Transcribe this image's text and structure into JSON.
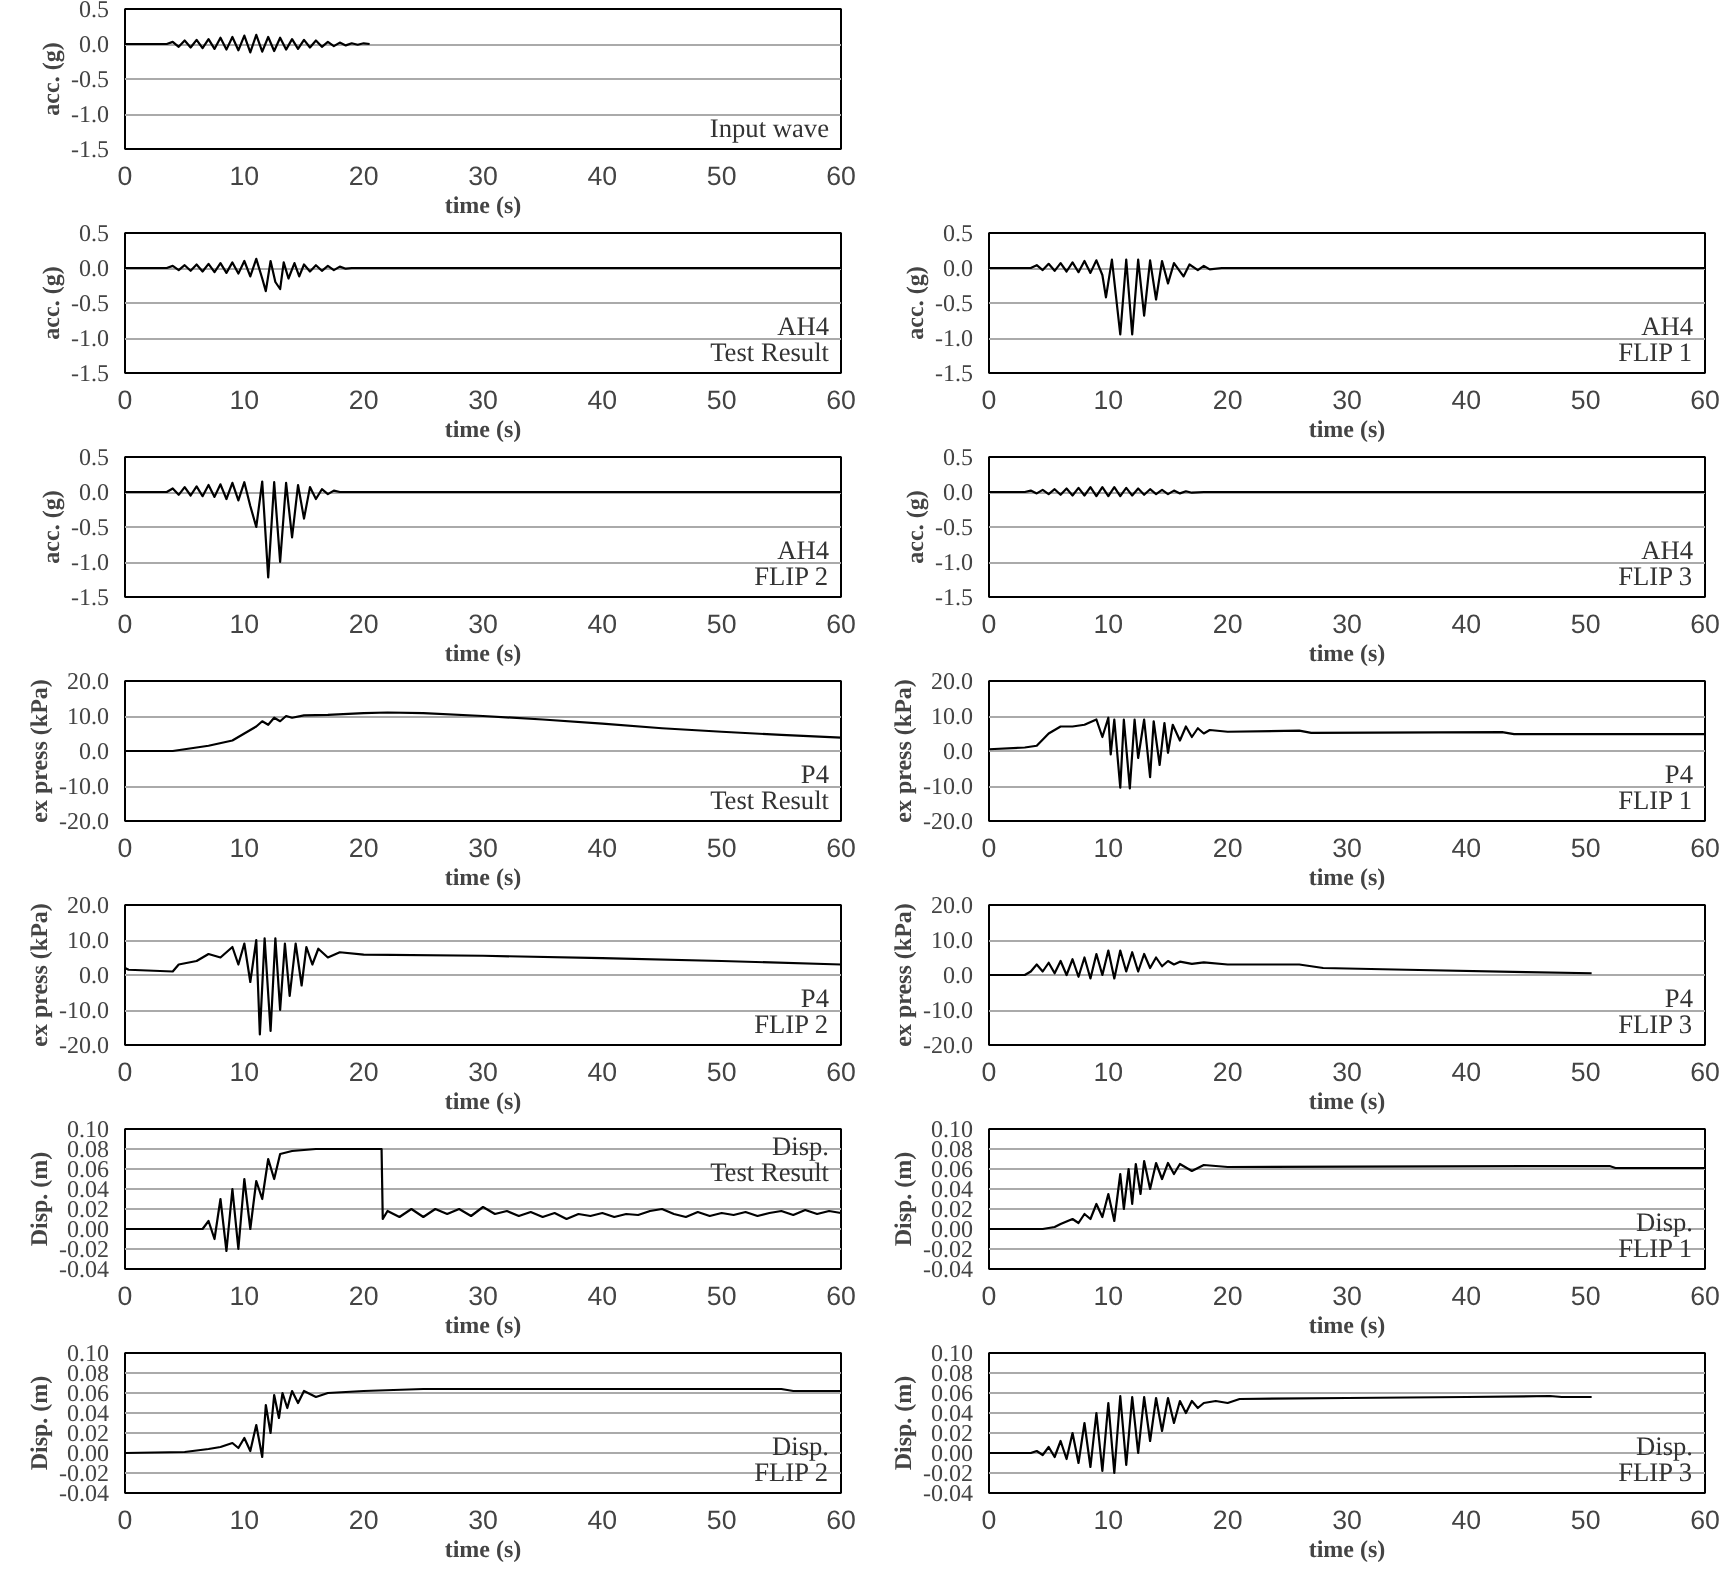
{
  "chart_data": [
    {
      "type": "line",
      "xlabel": "time (s)",
      "ylabel": "acc. (g)",
      "annotations": [
        "Input wave"
      ],
      "xlim": [
        0,
        60
      ],
      "xticks": [
        0,
        10,
        20,
        30,
        40,
        50,
        60
      ],
      "ylim": [
        -1.5,
        0.5
      ],
      "yticks": [
        {
          "value": 0.5,
          "label": "0.5"
        },
        {
          "value": 0,
          "label": "0.0"
        },
        {
          "value": -0.5,
          "label": "-0.5"
        },
        {
          "value": -1,
          "label": "-1.0"
        },
        {
          "value": -1.5,
          "label": "-1.5"
        }
      ],
      "grid": "y",
      "x": [
        0,
        3.5,
        4,
        4.5,
        5,
        5.5,
        6,
        6.5,
        7,
        7.5,
        8,
        8.5,
        9,
        9.5,
        10,
        10.5,
        11,
        11.5,
        12,
        12.5,
        13,
        13.5,
        14,
        14.5,
        15,
        15.5,
        16,
        16.5,
        17,
        17.5,
        18,
        18.5,
        19,
        19.5,
        20,
        20.5
      ],
      "series": [
        {
          "color": "#000000",
          "values": [
            0,
            0,
            0.03,
            -0.04,
            0.05,
            -0.05,
            0.06,
            -0.06,
            0.07,
            -0.07,
            0.09,
            -0.08,
            0.1,
            -0.09,
            0.12,
            -0.12,
            0.13,
            -0.11,
            0.1,
            -0.1,
            0.09,
            -0.08,
            0.07,
            -0.07,
            0.06,
            -0.05,
            0.05,
            -0.04,
            0.03,
            -0.03,
            0.02,
            -0.02,
            0.01,
            -0.01,
            0.01,
            0
          ]
        }
      ]
    },
    {
      "type": "line",
      "xlabel": "time (s)",
      "ylabel": "acc. (g)",
      "annotations": [
        "AH4",
        "Test Result"
      ],
      "xlim": [
        0,
        60
      ],
      "xticks": [
        0,
        10,
        20,
        30,
        40,
        50,
        60
      ],
      "ylim": [
        -1.5,
        0.5
      ],
      "yticks": [
        {
          "value": 0.5,
          "label": "0.5"
        },
        {
          "value": 0,
          "label": "0.0"
        },
        {
          "value": -0.5,
          "label": "-0.5"
        },
        {
          "value": -1,
          "label": "-1.0"
        },
        {
          "value": -1.5,
          "label": "-1.5"
        }
      ],
      "grid": "y",
      "x": [
        0,
        3.5,
        4,
        4.5,
        5,
        5.5,
        6,
        6.5,
        7,
        7.5,
        8,
        8.5,
        9,
        9.5,
        10,
        10.5,
        11,
        11.5,
        11.8,
        12.2,
        12.6,
        13,
        13.3,
        13.7,
        14.2,
        14.6,
        15,
        15.5,
        16,
        16.5,
        17,
        17.5,
        18,
        18.5,
        19,
        60
      ],
      "series": [
        {
          "color": "#000000",
          "values": [
            0,
            0,
            0.03,
            -0.03,
            0.04,
            -0.04,
            0.05,
            -0.05,
            0.06,
            -0.06,
            0.07,
            -0.07,
            0.08,
            -0.08,
            0.1,
            -0.12,
            0.13,
            -0.15,
            -0.33,
            0.1,
            -0.2,
            -0.3,
            0.08,
            -0.15,
            0.07,
            -0.12,
            0.05,
            -0.05,
            0.04,
            -0.04,
            0.03,
            -0.03,
            0.02,
            -0.01,
            0,
            0
          ]
        }
      ]
    },
    {
      "type": "line",
      "xlabel": "time (s)",
      "ylabel": "acc. (g)",
      "annotations": [
        "AH4",
        "FLIP 1"
      ],
      "xlim": [
        0,
        60
      ],
      "xticks": [
        0,
        10,
        20,
        30,
        40,
        50,
        60
      ],
      "ylim": [
        -1.5,
        0.5
      ],
      "yticks": [
        {
          "value": 0.5,
          "label": "0.5"
        },
        {
          "value": 0,
          "label": "0.0"
        },
        {
          "value": -0.5,
          "label": "-0.5"
        },
        {
          "value": -1,
          "label": "-1.0"
        },
        {
          "value": -1.5,
          "label": "-1.5"
        }
      ],
      "grid": "y",
      "x": [
        0,
        3.5,
        4,
        4.5,
        5,
        5.5,
        6,
        6.5,
        7,
        7.5,
        8,
        8.5,
        9,
        9.5,
        9.8,
        10.3,
        11,
        11.5,
        12,
        12.5,
        13,
        13.5,
        14,
        14.5,
        15,
        15.5,
        16.3,
        16.8,
        17.5,
        18,
        18.5,
        19.5,
        60
      ],
      "series": [
        {
          "color": "#000000",
          "values": [
            0,
            0,
            0.04,
            -0.03,
            0.06,
            -0.04,
            0.07,
            -0.05,
            0.08,
            -0.06,
            0.1,
            -0.07,
            0.11,
            -0.1,
            -0.42,
            0.12,
            -0.95,
            0.12,
            -0.95,
            0.12,
            -0.68,
            0.11,
            -0.45,
            0.1,
            -0.22,
            0.07,
            -0.12,
            0.05,
            -0.03,
            0.03,
            -0.02,
            0,
            0
          ]
        }
      ]
    },
    {
      "type": "line",
      "xlabel": "time (s)",
      "ylabel": "acc. (g)",
      "annotations": [
        "AH4",
        "FLIP 2"
      ],
      "xlim": [
        0,
        60
      ],
      "xticks": [
        0,
        10,
        20,
        30,
        40,
        50,
        60
      ],
      "ylim": [
        -1.5,
        0.5
      ],
      "yticks": [
        {
          "value": 0.5,
          "label": "0.5"
        },
        {
          "value": 0,
          "label": "0.0"
        },
        {
          "value": -0.5,
          "label": "-0.5"
        },
        {
          "value": -1,
          "label": "-1.0"
        },
        {
          "value": -1.5,
          "label": "-1.5"
        }
      ],
      "grid": "y",
      "x": [
        0,
        3.5,
        4,
        4.5,
        5,
        5.5,
        6,
        6.5,
        7,
        7.5,
        8,
        8.5,
        9,
        9.5,
        10,
        10.5,
        11,
        11.5,
        12,
        12.5,
        13,
        13.5,
        14,
        14.5,
        15,
        15.5,
        16,
        16.5,
        17,
        17.5,
        18,
        60
      ],
      "series": [
        {
          "color": "#000000",
          "values": [
            0,
            0,
            0.05,
            -0.04,
            0.07,
            -0.05,
            0.08,
            -0.06,
            0.1,
            -0.07,
            0.11,
            -0.1,
            0.13,
            -0.12,
            0.14,
            -0.2,
            -0.5,
            0.15,
            -1.22,
            0.14,
            -1.0,
            0.13,
            -0.65,
            0.1,
            -0.38,
            0.07,
            -0.1,
            0.04,
            -0.03,
            0.02,
            0,
            0
          ]
        }
      ]
    },
    {
      "type": "line",
      "xlabel": "time (s)",
      "ylabel": "acc. (g)",
      "annotations": [
        "AH4",
        "FLIP 3"
      ],
      "xlim": [
        0,
        60
      ],
      "xticks": [
        0,
        10,
        20,
        30,
        40,
        50,
        60
      ],
      "ylim": [
        -1.5,
        0.5
      ],
      "yticks": [
        {
          "value": 0.5,
          "label": "0.5"
        },
        {
          "value": 0,
          "label": "0.0"
        },
        {
          "value": -0.5,
          "label": "-0.5"
        },
        {
          "value": -1,
          "label": "-1.0"
        },
        {
          "value": -1.5,
          "label": "-1.5"
        }
      ],
      "grid": "y",
      "x": [
        0,
        3,
        3.5,
        4,
        4.5,
        5,
        5.5,
        6,
        6.5,
        7,
        7.5,
        8,
        8.5,
        9,
        9.5,
        10,
        10.5,
        11,
        11.5,
        12,
        12.5,
        13,
        13.5,
        14,
        14.5,
        15,
        15.5,
        16,
        16.5,
        17,
        18,
        60
      ],
      "series": [
        {
          "color": "#000000",
          "values": [
            0,
            0,
            0.02,
            -0.02,
            0.03,
            -0.03,
            0.04,
            -0.04,
            0.05,
            -0.05,
            0.06,
            -0.05,
            0.07,
            -0.06,
            0.07,
            -0.06,
            0.07,
            -0.06,
            0.06,
            -0.05,
            0.05,
            -0.04,
            0.04,
            -0.03,
            0.03,
            -0.03,
            0.02,
            -0.02,
            0.01,
            -0.01,
            0,
            0
          ]
        }
      ]
    },
    {
      "type": "line",
      "xlabel": "time (s)",
      "ylabel": "ex press (kPa)",
      "annotations": [
        "P4",
        "Test Result"
      ],
      "xlim": [
        0,
        60
      ],
      "xticks": [
        0,
        10,
        20,
        30,
        40,
        50,
        60
      ],
      "ylim": [
        -20,
        20
      ],
      "yticks": [
        {
          "value": 20,
          "label": "20.0"
        },
        {
          "value": 10,
          "label": "10.0"
        },
        {
          "value": 0,
          "label": "0.0"
        },
        {
          "value": -10,
          "label": "-10.0"
        },
        {
          "value": -20,
          "label": "-20.0"
        }
      ],
      "grid": "y",
      "x": [
        0,
        4,
        5,
        7,
        9,
        10,
        11,
        11.5,
        12,
        12.5,
        13,
        13.5,
        14,
        15,
        17,
        20,
        22,
        25,
        30,
        35,
        40,
        45,
        50,
        55,
        60
      ],
      "series": [
        {
          "color": "#000000",
          "values": [
            0,
            0,
            0.5,
            1.5,
            3,
            5,
            7,
            8.5,
            7.5,
            9.5,
            8.5,
            10,
            9.5,
            10.2,
            10.3,
            10.8,
            11,
            10.8,
            10,
            9,
            7.8,
            6.5,
            5.5,
            4.6,
            3.8
          ]
        }
      ]
    },
    {
      "type": "line",
      "xlabel": "time (s)",
      "ylabel": "ex press (kPa)",
      "annotations": [
        "P4",
        "FLIP 1"
      ],
      "xlim": [
        0,
        60
      ],
      "xticks": [
        0,
        10,
        20,
        30,
        40,
        50,
        60
      ],
      "ylim": [
        -20,
        20
      ],
      "yticks": [
        {
          "value": 20,
          "label": "20.0"
        },
        {
          "value": 10,
          "label": "10.0"
        },
        {
          "value": 0,
          "label": "0.0"
        },
        {
          "value": -10,
          "label": "-10.0"
        },
        {
          "value": -20,
          "label": "-20.0"
        }
      ],
      "grid": "y",
      "x": [
        0,
        3,
        4,
        5,
        6,
        7,
        8,
        9,
        9.5,
        10,
        10.2,
        10.5,
        11,
        11.3,
        11.8,
        12.2,
        12.5,
        13,
        13.5,
        13.8,
        14.3,
        14.7,
        15,
        15.4,
        16,
        16.5,
        17,
        17.5,
        18,
        18.5,
        20,
        26,
        27,
        43,
        44,
        60
      ],
      "series": [
        {
          "color": "#000000",
          "values": [
            0.5,
            1,
            1.5,
            5,
            7,
            7,
            7.5,
            9,
            4,
            9.5,
            -1,
            9,
            -10.5,
            9,
            -10.7,
            9,
            -2,
            9,
            -7.5,
            8.5,
            -4,
            8,
            -0.5,
            7.5,
            3,
            7,
            4,
            6.5,
            5,
            6,
            5.5,
            5.8,
            5.2,
            5.4,
            4.8,
            4.8
          ]
        }
      ]
    },
    {
      "type": "line",
      "xlabel": "time (s)",
      "ylabel": "ex press (kPa)",
      "annotations": [
        "P4",
        "FLIP 2"
      ],
      "xlim": [
        0,
        60
      ],
      "xticks": [
        0,
        10,
        20,
        30,
        40,
        50,
        60
      ],
      "ylim": [
        -20,
        20
      ],
      "yticks": [
        {
          "value": 20,
          "label": "20.0"
        },
        {
          "value": 10,
          "label": "10.0"
        },
        {
          "value": 0,
          "label": "0.0"
        },
        {
          "value": -10,
          "label": "-10.0"
        },
        {
          "value": -20,
          "label": "-20.0"
        }
      ],
      "grid": "y",
      "x": [
        0,
        0.3,
        4,
        4.5,
        6,
        7,
        8,
        9,
        9.5,
        10,
        10.5,
        11,
        11.3,
        11.7,
        12.2,
        12.6,
        13,
        13.4,
        13.8,
        14.3,
        14.8,
        15.2,
        15.7,
        16.2,
        17,
        18,
        20,
        30,
        40,
        50,
        60
      ],
      "series": [
        {
          "color": "#000000",
          "values": [
            2,
            1.5,
            1,
            3,
            4,
            6,
            5,
            8,
            3,
            9,
            -2,
            10,
            -17,
            10.5,
            -16,
            10.5,
            -10,
            9,
            -6,
            9,
            -3,
            8,
            3,
            7.5,
            5,
            6.5,
            5.8,
            5.5,
            4.8,
            4,
            3
          ]
        }
      ]
    },
    {
      "type": "line",
      "xlabel": "time (s)",
      "ylabel": "ex press (kPa)",
      "annotations": [
        "P4",
        "FLIP 3"
      ],
      "xlim": [
        0,
        60
      ],
      "xticks": [
        0,
        10,
        20,
        30,
        40,
        50,
        60
      ],
      "ylim": [
        -20,
        20
      ],
      "yticks": [
        {
          "value": 20,
          "label": "20.0"
        },
        {
          "value": 10,
          "label": "10.0"
        },
        {
          "value": 0,
          "label": "0.0"
        },
        {
          "value": -10,
          "label": "-10.0"
        },
        {
          "value": -20,
          "label": "-20.0"
        }
      ],
      "grid": "y",
      "x": [
        0,
        3,
        3.5,
        4,
        4.5,
        5,
        5.5,
        6,
        6.5,
        7,
        7.5,
        8,
        8.5,
        9,
        9.5,
        10,
        10.5,
        11,
        11.5,
        12,
        12.5,
        13,
        13.5,
        14,
        14.5,
        15,
        15.5,
        16,
        17,
        18,
        20,
        26,
        28,
        35,
        45,
        50.5
      ],
      "series": [
        {
          "color": "#000000",
          "values": [
            0,
            0,
            1,
            3,
            1,
            3.5,
            0.5,
            4,
            0,
            4.5,
            -0.5,
            5,
            -1,
            6,
            0,
            7,
            -1,
            7,
            1,
            6.5,
            1,
            6,
            2,
            5,
            2.5,
            4,
            3,
            3.8,
            3.2,
            3.6,
            3,
            3,
            2,
            1.5,
            0.8,
            0.5
          ]
        }
      ]
    },
    {
      "type": "line",
      "xlabel": "time (s)",
      "ylabel": "Disp. (m)",
      "annotations": [
        "Disp.",
        "Test Result"
      ],
      "xlim": [
        0,
        60
      ],
      "xticks": [
        0,
        10,
        20,
        30,
        40,
        50,
        60
      ],
      "ylim": [
        -0.04,
        0.1
      ],
      "yticks": [
        {
          "value": 0.1,
          "label": "0.10"
        },
        {
          "value": 0.08,
          "label": "0.08"
        },
        {
          "value": 0.06,
          "label": "0.06"
        },
        {
          "value": 0.04,
          "label": "0.04"
        },
        {
          "value": 0.02,
          "label": "0.02"
        },
        {
          "value": 0,
          "label": "0.00"
        },
        {
          "value": -0.02,
          "label": "-0.02"
        },
        {
          "value": -0.04,
          "label": "-0.04"
        }
      ],
      "grid": "y",
      "x": [
        0,
        6.5,
        7,
        7.5,
        8,
        8.5,
        9,
        9.5,
        10,
        10.5,
        11,
        11.5,
        12,
        12.5,
        13,
        14,
        16,
        21.5,
        21.6,
        22,
        23,
        24,
        25,
        26,
        27,
        28,
        29,
        30,
        31,
        32,
        33,
        34,
        35,
        36,
        37,
        38,
        39,
        40,
        41,
        42,
        43,
        44,
        45,
        46,
        47,
        48,
        49,
        50,
        51,
        52,
        53,
        54,
        55,
        56,
        57,
        58,
        59,
        60
      ],
      "series": [
        {
          "color": "#000000",
          "values": [
            0,
            0,
            0.008,
            -0.01,
            0.03,
            -0.022,
            0.04,
            -0.02,
            0.05,
            0,
            0.048,
            0.03,
            0.07,
            0.05,
            0.075,
            0.078,
            0.08,
            0.08,
            0.01,
            0.018,
            0.012,
            0.02,
            0.012,
            0.02,
            0.015,
            0.02,
            0.013,
            0.022,
            0.015,
            0.018,
            0.013,
            0.017,
            0.012,
            0.016,
            0.01,
            0.015,
            0.013,
            0.016,
            0.012,
            0.015,
            0.014,
            0.018,
            0.02,
            0.015,
            0.012,
            0.017,
            0.013,
            0.016,
            0.014,
            0.017,
            0.013,
            0.016,
            0.018,
            0.014,
            0.019,
            0.015,
            0.018,
            0.016
          ]
        }
      ]
    },
    {
      "type": "line",
      "xlabel": "time (s)",
      "ylabel": "Disp. (m)",
      "annotations": [
        "Disp.",
        "FLIP 1"
      ],
      "xlim": [
        0,
        60
      ],
      "xticks": [
        0,
        10,
        20,
        30,
        40,
        50,
        60
      ],
      "ylim": [
        -0.04,
        0.1
      ],
      "yticks": [
        {
          "value": 0.1,
          "label": "0.10"
        },
        {
          "value": 0.08,
          "label": "0.08"
        },
        {
          "value": 0.06,
          "label": "0.06"
        },
        {
          "value": 0.04,
          "label": "0.04"
        },
        {
          "value": 0.02,
          "label": "0.02"
        },
        {
          "value": 0,
          "label": "0.00"
        },
        {
          "value": -0.02,
          "label": "-0.02"
        },
        {
          "value": -0.04,
          "label": "-0.04"
        }
      ],
      "grid": "y",
      "x": [
        0,
        4.5,
        5.5,
        6,
        7,
        7.5,
        8,
        8.5,
        9,
        9.5,
        10,
        10.5,
        11,
        11.3,
        11.7,
        12,
        12.3,
        12.7,
        13,
        13.5,
        14,
        14.5,
        15,
        15.5,
        16,
        17,
        18,
        20,
        52,
        52.5,
        60
      ],
      "series": [
        {
          "color": "#000000",
          "values": [
            0,
            0,
            0.002,
            0.005,
            0.01,
            0.006,
            0.015,
            0.01,
            0.025,
            0.012,
            0.035,
            0.008,
            0.055,
            0.02,
            0.06,
            0.025,
            0.065,
            0.035,
            0.068,
            0.04,
            0.066,
            0.05,
            0.066,
            0.055,
            0.065,
            0.058,
            0.064,
            0.062,
            0.063,
            0.061,
            0.061
          ]
        }
      ]
    },
    {
      "type": "line",
      "xlabel": "time (s)",
      "ylabel": "Disp. (m)",
      "annotations": [
        "Disp.",
        "FLIP 2"
      ],
      "xlim": [
        0,
        60
      ],
      "xticks": [
        0,
        10,
        20,
        30,
        40,
        50,
        60
      ],
      "ylim": [
        -0.04,
        0.1
      ],
      "yticks": [
        {
          "value": 0.1,
          "label": "0.10"
        },
        {
          "value": 0.08,
          "label": "0.08"
        },
        {
          "value": 0.06,
          "label": "0.06"
        },
        {
          "value": 0.04,
          "label": "0.04"
        },
        {
          "value": 0.02,
          "label": "0.02"
        },
        {
          "value": 0,
          "label": "0.00"
        },
        {
          "value": -0.02,
          "label": "-0.02"
        },
        {
          "value": -0.04,
          "label": "-0.04"
        }
      ],
      "grid": "y",
      "x": [
        0,
        5,
        7,
        8,
        9,
        9.5,
        10,
        10.5,
        11,
        11.5,
        11.8,
        12.2,
        12.5,
        12.9,
        13.2,
        13.6,
        14,
        14.5,
        15,
        16,
        17,
        20,
        25,
        40,
        55,
        56,
        60
      ],
      "series": [
        {
          "color": "#000000",
          "values": [
            0,
            0.001,
            0.004,
            0.006,
            0.01,
            0.005,
            0.015,
            0.002,
            0.028,
            -0.004,
            0.048,
            0.02,
            0.058,
            0.035,
            0.06,
            0.045,
            0.062,
            0.05,
            0.062,
            0.056,
            0.06,
            0.062,
            0.064,
            0.064,
            0.064,
            0.062,
            0.062
          ]
        }
      ]
    },
    {
      "type": "line",
      "xlabel": "time (s)",
      "ylabel": "Disp. (m)",
      "annotations": [
        "Disp.",
        "FLIP 3"
      ],
      "xlim": [
        0,
        60
      ],
      "xticks": [
        0,
        10,
        20,
        30,
        40,
        50,
        60
      ],
      "ylim": [
        -0.04,
        0.1
      ],
      "yticks": [
        {
          "value": 0.1,
          "label": "0.10"
        },
        {
          "value": 0.08,
          "label": "0.08"
        },
        {
          "value": 0.06,
          "label": "0.06"
        },
        {
          "value": 0.04,
          "label": "0.04"
        },
        {
          "value": 0.02,
          "label": "0.02"
        },
        {
          "value": 0,
          "label": "0.00"
        },
        {
          "value": -0.02,
          "label": "-0.02"
        },
        {
          "value": -0.04,
          "label": "-0.04"
        }
      ],
      "grid": "y",
      "x": [
        0,
        3.5,
        4,
        4.5,
        5,
        5.5,
        6,
        6.5,
        7,
        7.5,
        8,
        8.5,
        9,
        9.5,
        10,
        10.5,
        11,
        11.5,
        12,
        12.5,
        13,
        13.5,
        14,
        14.5,
        15,
        15.5,
        16,
        16.5,
        17,
        17.5,
        18,
        19,
        20,
        21,
        30,
        40,
        47,
        48,
        50.5
      ],
      "series": [
        {
          "color": "#000000",
          "values": [
            0,
            0,
            0.002,
            -0.002,
            0.006,
            -0.004,
            0.012,
            -0.006,
            0.02,
            -0.01,
            0.03,
            -0.014,
            0.04,
            -0.018,
            0.05,
            -0.02,
            0.057,
            -0.012,
            0.056,
            0,
            0.056,
            0.012,
            0.055,
            0.022,
            0.055,
            0.03,
            0.052,
            0.04,
            0.052,
            0.045,
            0.05,
            0.052,
            0.05,
            0.054,
            0.055,
            0.056,
            0.057,
            0.056,
            0.056
          ]
        }
      ]
    }
  ]
}
